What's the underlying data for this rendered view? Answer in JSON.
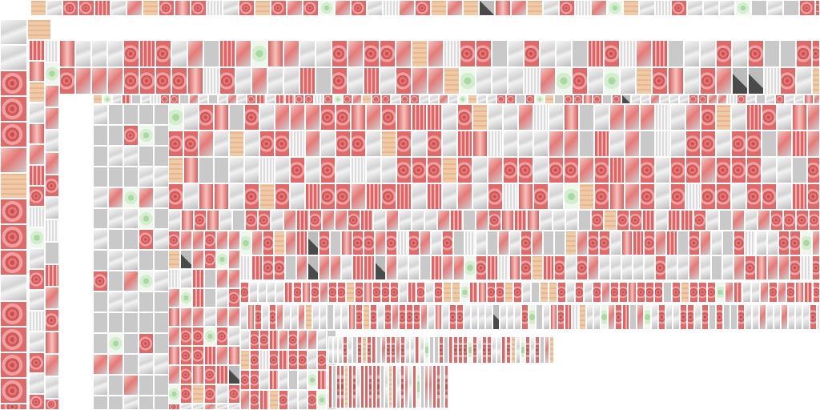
{
  "atlas": {
    "background": "#ffffff",
    "palette": {
      "red": "#e06a6a",
      "pink": "#f0a0a0",
      "grey": "#cfcfcf",
      "green": "#a9d9a2",
      "tan": "#f0c9a6",
      "dark": "#4a4a4a"
    }
  }
}
